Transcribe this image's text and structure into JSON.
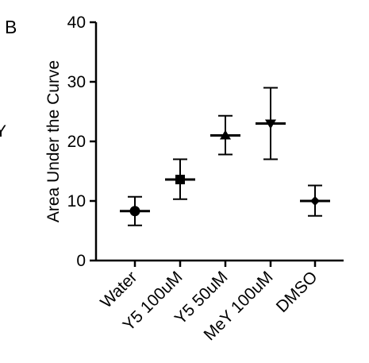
{
  "panel_label": "B",
  "edge_fragment": "Y",
  "chart_data": {
    "type": "scatter",
    "ylabel": "Area Under the Curve",
    "ylim": [
      0,
      40
    ],
    "yticks": [
      0,
      10,
      20,
      30,
      40
    ],
    "grid": false,
    "categories": [
      "Water",
      "Y5 100uM",
      "Y5 50uM",
      "MeY 100uM",
      "DMSO"
    ],
    "series": [
      {
        "category": "Water",
        "mean": 8.3,
        "low": 5.9,
        "high": 10.7,
        "marker": "circle"
      },
      {
        "category": "Y5 100uM",
        "mean": 13.6,
        "low": 10.3,
        "high": 17.0,
        "marker": "square"
      },
      {
        "category": "Y5 50uM",
        "mean": 21.0,
        "low": 17.8,
        "high": 24.3,
        "marker": "triangle-up"
      },
      {
        "category": "MeY 100uM",
        "mean": 23.0,
        "low": 17.0,
        "high": 29.0,
        "marker": "triangle-down"
      },
      {
        "category": "DMSO",
        "mean": 10.0,
        "low": 7.5,
        "high": 12.6,
        "marker": "diamond"
      }
    ]
  }
}
